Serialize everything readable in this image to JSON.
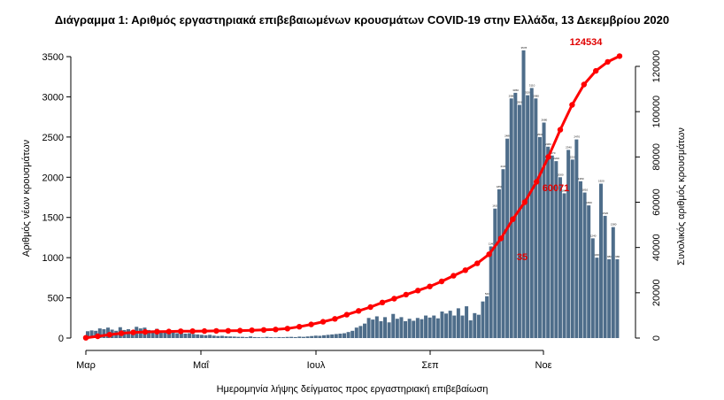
{
  "chart_data": {
    "type": "bar",
    "title": "Διάγραμμα 1: Αριθμός εργαστηριακά επιβεβαιωμένων κρουσμάτων COVID-19 στην Ελλάδα, 13 Δεκεμβρίου 2020",
    "xlabel": "Ημερομηνία λήψης δείγματος προς εργαστηριακή επιβεβαίωση",
    "ylabel": "Αριθμός νέων κρουσμάτων",
    "y2label": "Συνολικός αριθμός κρουσμάτων",
    "x_tick_labels": [
      "Μαρ",
      "Μαΐ",
      "Ιουλ",
      "Σεπ",
      "Νοε"
    ],
    "ylim": [
      0,
      3700
    ],
    "y_ticks": [
      0,
      500,
      1000,
      1500,
      2000,
      2500,
      3000,
      3500
    ],
    "y2lim": [
      0,
      128000
    ],
    "y2_ticks": [
      0,
      20000,
      40000,
      60000,
      80000,
      100000,
      120000
    ],
    "grid": false,
    "colors": {
      "bars": "#4e6d8a",
      "cumulative": "#ff0000"
    },
    "series": [
      {
        "kind": "bar",
        "values": [
          85,
          95,
          90,
          120,
          110,
          130,
          105,
          90,
          135,
          100,
          110,
          95,
          140,
          120,
          130,
          100,
          95,
          115,
          90,
          80,
          95,
          70,
          60,
          75,
          55,
          60,
          50,
          45,
          40,
          35,
          40,
          30,
          25,
          28,
          22,
          20,
          18,
          15,
          15,
          12,
          20,
          12,
          10,
          8,
          15,
          10,
          8,
          12,
          10,
          14,
          15,
          12,
          18,
          15,
          20,
          25,
          30,
          28,
          35,
          40,
          45,
          50,
          55,
          60,
          75,
          90,
          130,
          150,
          180,
          250,
          230,
          270,
          210,
          260,
          195,
          300,
          240,
          260,
          210,
          240,
          215,
          250,
          235,
          280,
          255,
          280,
          245,
          330,
          305,
          340,
          280,
          370,
          280,
          395,
          220,
          310,
          290,
          455,
          520,
          1140,
          1610,
          1850,
          2100,
          2480,
          2980,
          3050,
          2900,
          3578,
          3020,
          3110,
          2980,
          2500,
          2680,
          2380,
          2270,
          2200,
          2000,
          1800,
          2340,
          2220,
          2470,
          1950,
          1810,
          1650,
          1240,
          1000,
          1920,
          1520,
          980,
          1380,
          980
        ]
      },
      {
        "kind": "line",
        "name": "",
        "values": [
          100,
          800,
          1500,
          2100,
          2500,
          2700,
          2800,
          2900,
          3000,
          3050,
          3100,
          3150,
          3200,
          3300,
          3450,
          3600,
          3800,
          4200,
          5000,
          6000,
          7200,
          8500,
          10300,
          12000,
          13700,
          15700,
          17400,
          19200,
          21000,
          22800,
          25000,
          27500,
          30000,
          33000,
          37000,
          44000,
          52500,
          60000,
          69000,
          80000,
          92000,
          103000,
          112000,
          118000,
          122000,
          124534
        ]
      }
    ],
    "annotations": [
      "124534",
      "60071",
      "35"
    ]
  }
}
